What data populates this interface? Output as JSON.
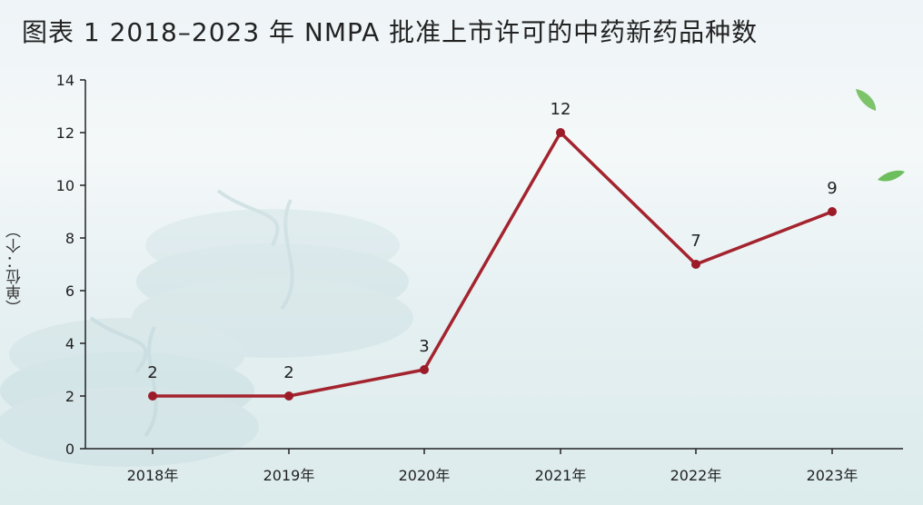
{
  "title": "图表 1  2018–2023 年 NMPA 批准上市许可的中药新药品种数",
  "colors": {
    "line": "#a3242e",
    "marker": "#9b1b28",
    "axis": "#222222"
  },
  "chart_data": {
    "type": "line",
    "title": "图表 1  2018–2023 年 NMPA 批准上市许可的中药新药品种数",
    "xlabel": "",
    "ylabel": "（单位：个）",
    "categories": [
      "2018年",
      "2019年",
      "2020年",
      "2021年",
      "2022年",
      "2023年"
    ],
    "values": [
      2,
      2,
      3,
      12,
      7,
      9
    ],
    "ylim": [
      0,
      14
    ],
    "yticks": [
      0,
      2,
      4,
      6,
      8,
      10,
      12,
      14
    ],
    "grid": false,
    "data_labels": true
  }
}
